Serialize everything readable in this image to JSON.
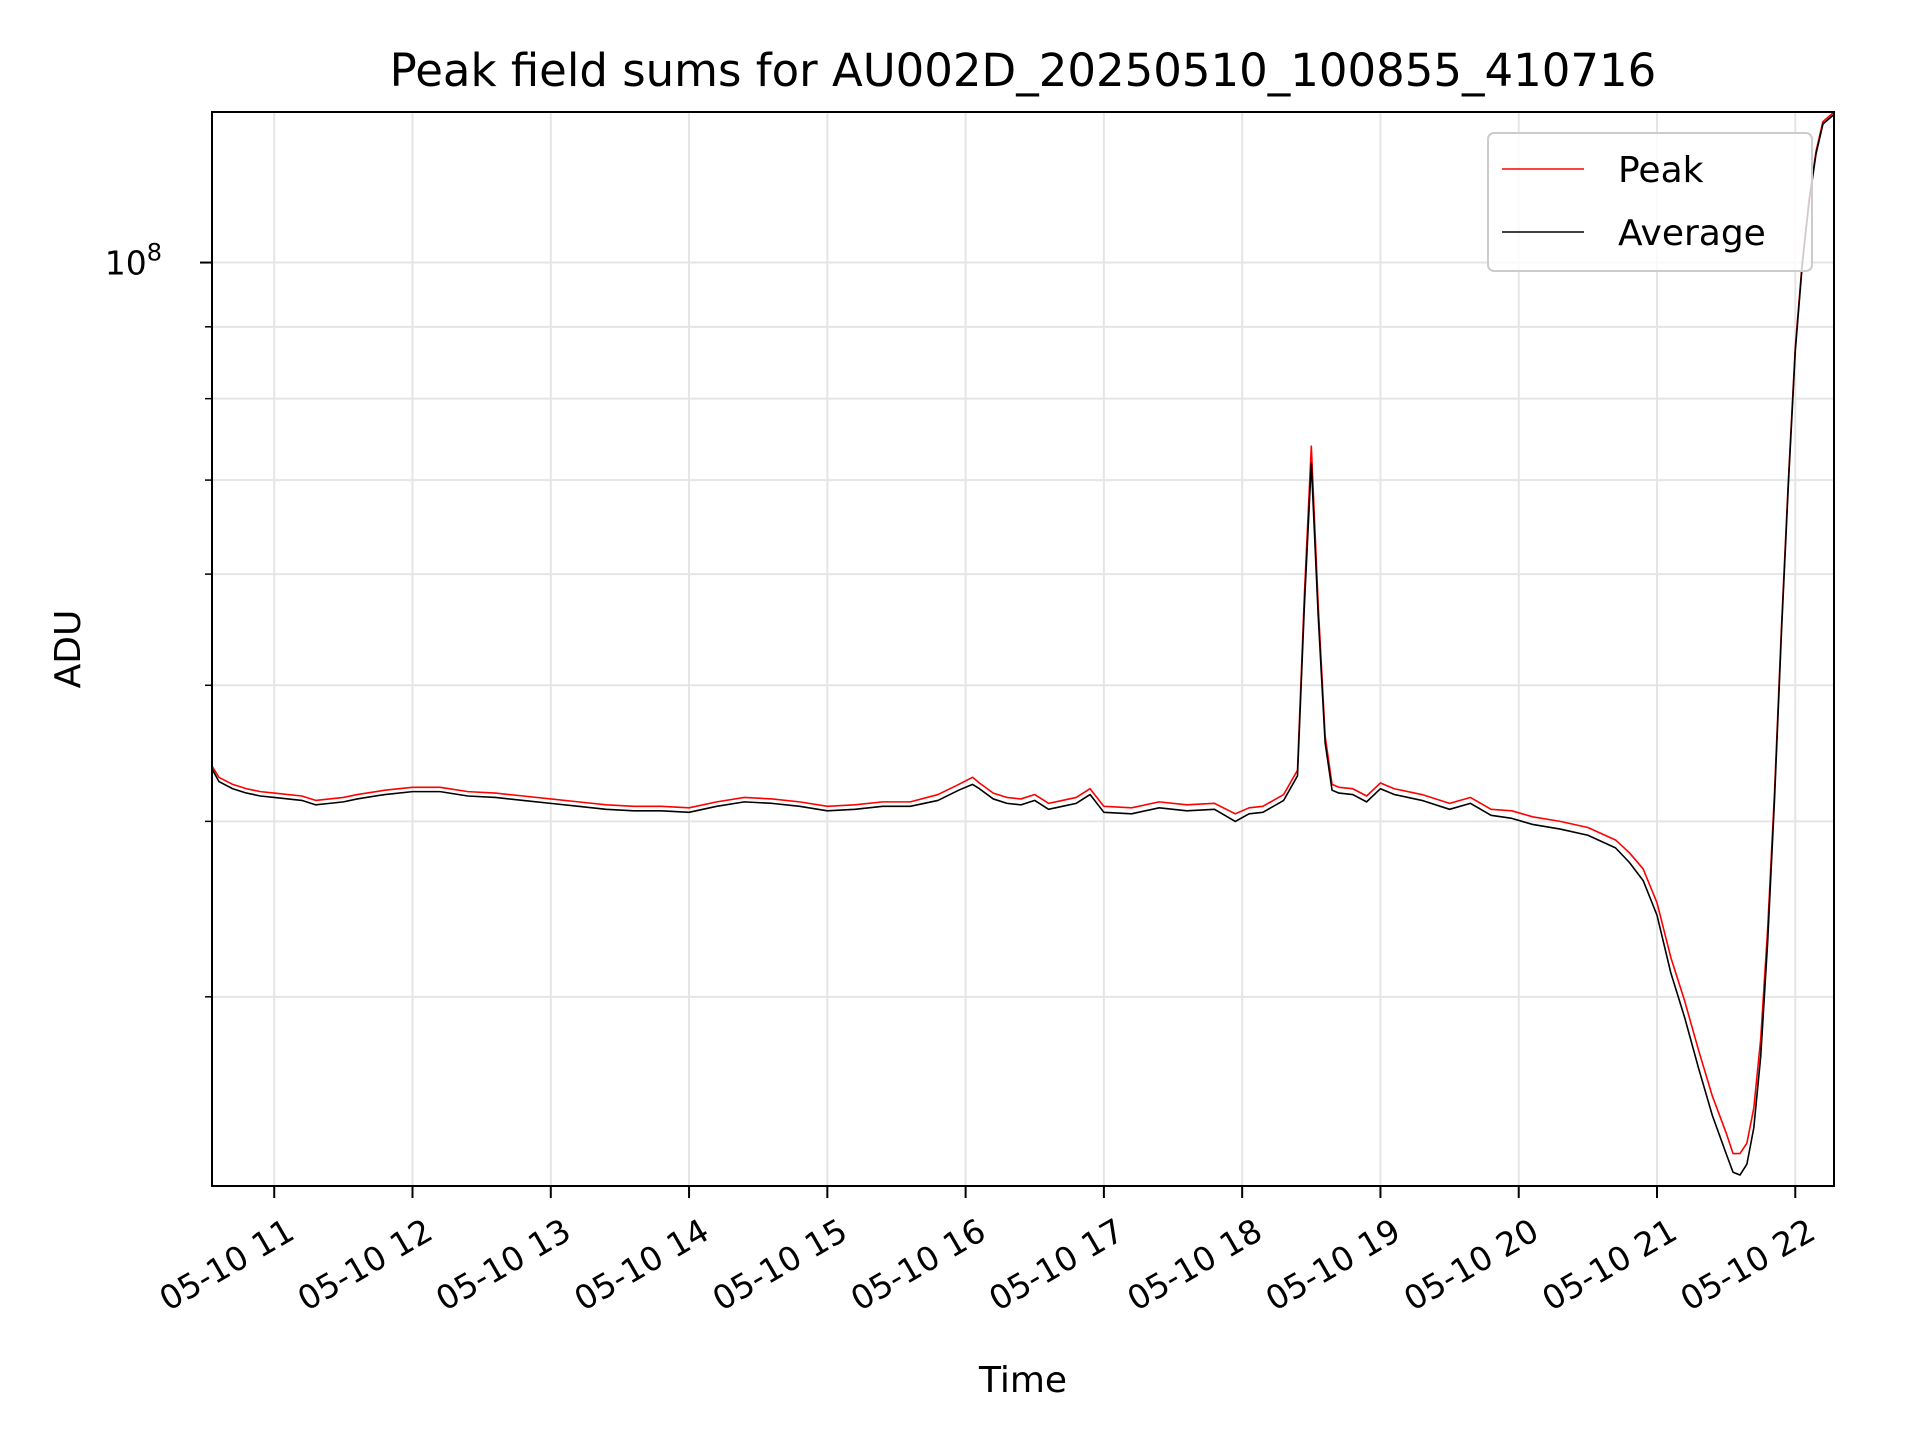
{
  "chart_data": {
    "type": "line",
    "title": "Peak field sums for AU002D_20250510_100855_410716",
    "xlabel": "Time",
    "ylabel": "ADU",
    "x_unit": "hours (2025-05-10)",
    "xlim": [
      10.55,
      22.28
    ],
    "ylim": [
      22000000,
      128000000
    ],
    "yscale": "log",
    "y_tick_labels": [
      {
        "value": 100000000,
        "base": "10",
        "exp": "8"
      }
    ],
    "y_minor_ticks": [
      30000000,
      40000000,
      50000000,
      60000000,
      70000000,
      80000000,
      90000000
    ],
    "x_tick_values": [
      11,
      12,
      13,
      14,
      15,
      16,
      17,
      18,
      19,
      20,
      21,
      22
    ],
    "x_tick_labels": [
      "05-10 11",
      "05-10 12",
      "05-10 13",
      "05-10 14",
      "05-10 15",
      "05-10 16",
      "05-10 17",
      "05-10 18",
      "05-10 19",
      "05-10 20",
      "05-10 21",
      "05-10 22"
    ],
    "grid": true,
    "legend_position": "upper right",
    "series": [
      {
        "name": "Peak",
        "color": "#ff0000",
        "x": [
          10.55,
          10.6,
          10.7,
          10.8,
          10.9,
          11.0,
          11.1,
          11.2,
          11.3,
          11.4,
          11.5,
          11.6,
          11.8,
          12.0,
          12.2,
          12.4,
          12.6,
          12.8,
          13.0,
          13.2,
          13.4,
          13.6,
          13.8,
          14.0,
          14.2,
          14.4,
          14.6,
          14.8,
          15.0,
          15.2,
          15.4,
          15.6,
          15.8,
          15.95,
          16.05,
          16.1,
          16.2,
          16.3,
          16.4,
          16.5,
          16.6,
          16.7,
          16.8,
          16.9,
          17.0,
          17.2,
          17.4,
          17.6,
          17.8,
          17.95,
          18.05,
          18.15,
          18.3,
          18.4,
          18.45,
          18.5,
          18.55,
          18.6,
          18.65,
          18.7,
          18.8,
          18.9,
          19.0,
          19.1,
          19.3,
          19.5,
          19.65,
          19.8,
          19.95,
          20.1,
          20.3,
          20.5,
          20.7,
          20.8,
          20.9,
          21.0,
          21.1,
          21.2,
          21.3,
          21.4,
          21.5,
          21.55,
          21.6,
          21.65,
          21.7,
          21.75,
          21.8,
          21.85,
          21.9,
          21.95,
          22.0,
          22.05,
          22.1,
          22.15,
          22.2,
          22.28
        ],
        "y": [
          43800000,
          43000000,
          42500000,
          42200000,
          42000000,
          41900000,
          41800000,
          41700000,
          41400000,
          41500000,
          41600000,
          41800000,
          42100000,
          42300000,
          42300000,
          42000000,
          41900000,
          41700000,
          41500000,
          41300000,
          41100000,
          41000000,
          41000000,
          40900000,
          41300000,
          41600000,
          41500000,
          41300000,
          41000000,
          41100000,
          41300000,
          41300000,
          41800000,
          42500000,
          43000000,
          42600000,
          41900000,
          41600000,
          41500000,
          41800000,
          41200000,
          41400000,
          41600000,
          42200000,
          41000000,
          40900000,
          41300000,
          41100000,
          41200000,
          40500000,
          40900000,
          41000000,
          41800000,
          43500000,
          58000000,
          74000000,
          57000000,
          46000000,
          42500000,
          42300000,
          42200000,
          41700000,
          42600000,
          42200000,
          41800000,
          41200000,
          41600000,
          40800000,
          40700000,
          40300000,
          40000000,
          39600000,
          38800000,
          38000000,
          37000000,
          35000000,
          32000000,
          29800000,
          27500000,
          25500000,
          24000000,
          23200000,
          23200000,
          23600000,
          25000000,
          28000000,
          33500000,
          42000000,
          55000000,
          70000000,
          87000000,
          100000000,
          111000000,
          120000000,
          126000000,
          128000000
        ]
      },
      {
        "name": "Average",
        "color": "#000000",
        "x": [
          10.55,
          10.6,
          10.7,
          10.8,
          10.9,
          11.0,
          11.1,
          11.2,
          11.3,
          11.4,
          11.5,
          11.6,
          11.8,
          12.0,
          12.2,
          12.4,
          12.6,
          12.8,
          13.0,
          13.2,
          13.4,
          13.6,
          13.8,
          14.0,
          14.2,
          14.4,
          14.6,
          14.8,
          15.0,
          15.2,
          15.4,
          15.6,
          15.8,
          15.95,
          16.05,
          16.1,
          16.2,
          16.3,
          16.4,
          16.5,
          16.6,
          16.7,
          16.8,
          16.9,
          17.0,
          17.2,
          17.4,
          17.6,
          17.8,
          17.95,
          18.05,
          18.15,
          18.3,
          18.4,
          18.45,
          18.5,
          18.55,
          18.6,
          18.65,
          18.7,
          18.8,
          18.9,
          19.0,
          19.1,
          19.3,
          19.5,
          19.65,
          19.8,
          19.95,
          20.1,
          20.3,
          20.5,
          20.7,
          20.8,
          20.9,
          21.0,
          21.1,
          21.2,
          21.3,
          21.4,
          21.5,
          21.55,
          21.6,
          21.65,
          21.7,
          21.75,
          21.8,
          21.85,
          21.9,
          21.95,
          22.0,
          22.05,
          22.1,
          22.15,
          22.2,
          22.28
        ],
        "y": [
          43600000,
          42700000,
          42200000,
          41900000,
          41700000,
          41600000,
          41500000,
          41400000,
          41100000,
          41200000,
          41300000,
          41500000,
          41800000,
          42000000,
          42000000,
          41700000,
          41600000,
          41400000,
          41200000,
          41000000,
          40800000,
          40700000,
          40700000,
          40600000,
          41000000,
          41300000,
          41200000,
          41000000,
          40700000,
          40800000,
          41000000,
          41000000,
          41400000,
          42100000,
          42500000,
          42200000,
          41500000,
          41200000,
          41100000,
          41400000,
          40800000,
          41000000,
          41200000,
          41800000,
          40600000,
          40500000,
          40900000,
          40700000,
          40800000,
          40000000,
          40500000,
          40600000,
          41400000,
          43100000,
          57000000,
          72000000,
          56000000,
          45500000,
          42100000,
          41900000,
          41800000,
          41300000,
          42200000,
          41800000,
          41400000,
          40800000,
          41200000,
          40400000,
          40200000,
          39800000,
          39500000,
          39100000,
          38300000,
          37400000,
          36300000,
          34300000,
          31200000,
          29000000,
          26700000,
          24700000,
          23200000,
          22500000,
          22400000,
          22800000,
          24200000,
          27200000,
          32800000,
          41500000,
          54500000,
          69500000,
          86500000,
          99500000,
          110500000,
          119500000,
          125500000,
          127500000
        ]
      }
    ]
  }
}
